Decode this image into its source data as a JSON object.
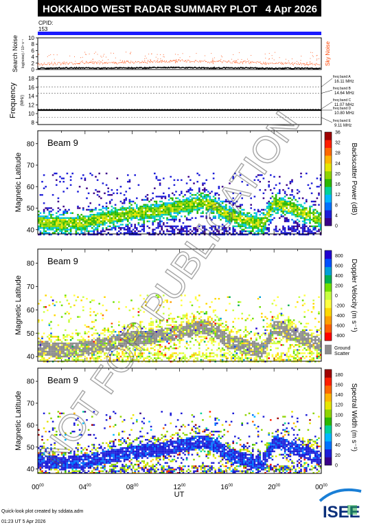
{
  "header": {
    "title": "HOKKAIDO WEST RADAR SUMMARY PLOT",
    "date": "4 Apr 2026",
    "cpid_label": "CPID:",
    "cpid_value": "153"
  },
  "watermark": "NOT FOR PUBLICATION",
  "colors": {
    "title_bg": "#000000",
    "cpid_bar": "#1a1aff",
    "sky_noise": "#ff4400",
    "search_noise": "#000000",
    "ground_scatter": "#8c8c8c"
  },
  "search_noise_panel": {
    "ylabel_main": "Search Noise",
    "ylabel_sub": "log(noise) / 10⁴ s⁻¹",
    "yticks": [
      "0",
      "2",
      "4",
      "6",
      "8",
      "10"
    ],
    "legend": "Sky Noise",
    "chart_data": {
      "type": "line",
      "x": [
        0,
        1,
        2,
        3,
        4,
        5,
        6,
        7,
        8,
        9,
        10,
        11,
        12,
        13,
        14,
        15,
        16,
        17,
        18,
        19,
        20,
        21,
        22,
        23,
        24
      ],
      "series": [
        {
          "values": [
            1.6,
            1.8,
            1.9,
            2.0,
            2.1,
            2.1,
            2.0,
            2.2,
            2.3,
            2.4,
            2.5,
            2.6,
            2.7,
            2.6,
            2.5,
            2.4,
            2.4,
            2.3,
            2.2,
            2.0,
            1.9,
            1.8,
            1.7,
            1.7,
            1.6
          ]
        },
        {
          "values": [
            0.4,
            0.4,
            0.5,
            0.5,
            0.5,
            0.4,
            0.4,
            0.5,
            0.5,
            0.5,
            0.6,
            0.6,
            0.6,
            0.6,
            0.5,
            0.5,
            0.5,
            0.5,
            0.5,
            0.4,
            0.4,
            0.4,
            0.4,
            0.4,
            0.4
          ]
        }
      ],
      "ylim": [
        0,
        10
      ],
      "xlim": [
        0,
        24
      ]
    }
  },
  "frequency_panel": {
    "ylabel_main": "Frequency",
    "ylabel_sub": "(MHz)",
    "yticks": [
      "8",
      "10",
      "12",
      "14",
      "16",
      "18"
    ],
    "bands": [
      {
        "label": "freq band A",
        "value": "16.11 MHz"
      },
      {
        "label": "freq band B",
        "value": "14.64 MHz"
      },
      {
        "label": "freq band C",
        "value": "11.07 MHz"
      },
      {
        "label": "freq band D",
        "value": "10.80 MHz"
      },
      {
        "label": "freq band E",
        "value": "9.11 MHz"
      }
    ],
    "chart_data": {
      "type": "line",
      "x": [
        0,
        24
      ],
      "series": [
        {
          "values": [
            10.8,
            10.8
          ]
        }
      ],
      "ylim": [
        7.5,
        18.5
      ],
      "reference_lines": [
        16.11,
        14.64,
        11.07,
        9.11
      ]
    }
  },
  "panels": [
    {
      "beam": "Beam  9",
      "ylabel": "Magnetic Latitude",
      "yticks": [
        "40",
        "50",
        "60",
        "70",
        "80"
      ],
      "colorbar_label": "Backscatter Power (dB)",
      "colorbar_ticks": [
        "0",
        "4",
        "8",
        "12",
        "16",
        "20",
        "24",
        "28",
        "32",
        "36"
      ],
      "colorbar_range": [
        0,
        36
      ],
      "palette": [
        "#3a0088",
        "#1c1cd8",
        "#0072ff",
        "#00b8ff",
        "#00d29a",
        "#2bb800",
        "#8ed400",
        "#e6e600",
        "#ffb400",
        "#ff6800",
        "#ff1e00",
        "#a00000"
      ],
      "chart_data": {
        "type": "heatmap",
        "ylim": [
          38,
          86
        ],
        "xlim": [
          0,
          24
        ],
        "fov_max_lat": 66.5,
        "auroral_band": {
          "ut": [
            0,
            2,
            4,
            6,
            8,
            10,
            12,
            14,
            15,
            16,
            18,
            19,
            20,
            22,
            24
          ],
          "lat_center": [
            44,
            43,
            44,
            46,
            48,
            49,
            51,
            53,
            51,
            47,
            44,
            43,
            53,
            49,
            45
          ]
        }
      }
    },
    {
      "beam": "Beam  9",
      "ylabel": "Magnetic Latitude",
      "yticks": [
        "40",
        "50",
        "60",
        "70",
        "80"
      ],
      "colorbar_label": "Doppler Velocity (m s⁻¹)",
      "colorbar_ticks": [
        "-800",
        "-600",
        "-400",
        "-200",
        "0",
        "200",
        "400",
        "600",
        "800"
      ],
      "colorbar_range": [
        -900,
        900
      ],
      "palette": [
        "#ff0000",
        "#ff6000",
        "#ffa000",
        "#ffd800",
        "#ffff40",
        "#c8ff40",
        "#70e000",
        "#00b050",
        "#00a0d8",
        "#0050ff",
        "#2000d0"
      ],
      "ground_scatter_label": "Ground Scatter",
      "chart_data": {
        "type": "heatmap",
        "ylim": [
          38,
          86
        ],
        "xlim": [
          0,
          24
        ],
        "fov_max_lat": 66.5
      }
    },
    {
      "beam": "Beam  9",
      "ylabel": "Magnetic Latitude",
      "yticks": [
        "40",
        "50",
        "60",
        "70",
        "80"
      ],
      "colorbar_label": "Spectral Width (m s⁻¹)",
      "colorbar_ticks": [
        "0",
        "20",
        "40",
        "60",
        "80",
        "100",
        "120",
        "140",
        "160",
        "180"
      ],
      "colorbar_range": [
        0,
        190
      ],
      "palette": [
        "#3a0088",
        "#1c1cd8",
        "#0072ff",
        "#00b8ff",
        "#00d29a",
        "#2bb800",
        "#8ed400",
        "#e6e600",
        "#ffb400",
        "#ff6800",
        "#ff1e00",
        "#a00000"
      ],
      "chart_data": {
        "type": "heatmap",
        "ylim": [
          38,
          86
        ],
        "xlim": [
          0,
          24
        ],
        "fov_max_lat": 66.5
      }
    }
  ],
  "xaxis": {
    "hours": [
      "00",
      "04",
      "08",
      "12",
      "16",
      "20",
      "00"
    ],
    "minute_suffix": "00",
    "label": "UT",
    "xlim": [
      0,
      24
    ]
  },
  "footer": {
    "credit": "Quick-look plot created by sddata.adm",
    "timestamp": "01:23 UT  5 Apr 2026",
    "logo": "ISEE"
  }
}
